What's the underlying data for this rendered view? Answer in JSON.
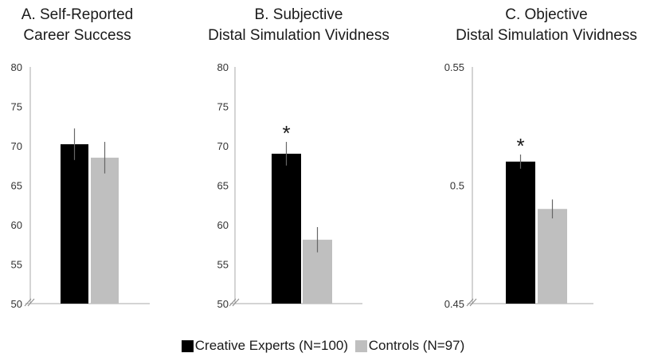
{
  "chart_data": [
    {
      "type": "bar",
      "title": [
        "A. Self-Reported",
        "Career Success"
      ],
      "categories": [
        ""
      ],
      "series": [
        {
          "name": "Creative Experts (N=100)",
          "values": [
            70.2
          ],
          "error": [
            2.0
          ]
        },
        {
          "name": "Controls (N=97)",
          "values": [
            68.5
          ],
          "error": [
            2.0
          ]
        }
      ],
      "ylim": [
        50,
        80
      ],
      "yticks": [
        "80",
        "75",
        "70",
        "65",
        "60",
        "55",
        "50"
      ],
      "significance": ""
    },
    {
      "type": "bar",
      "title": [
        "B. Subjective",
        "Distal Simulation Vividness"
      ],
      "categories": [
        ""
      ],
      "series": [
        {
          "name": "Creative Experts (N=100)",
          "values": [
            69.0
          ],
          "error": [
            1.5
          ]
        },
        {
          "name": "Controls (N=97)",
          "values": [
            58.1
          ],
          "error": [
            1.6
          ]
        }
      ],
      "ylim": [
        50,
        80
      ],
      "yticks": [
        "80",
        "75",
        "70",
        "65",
        "60",
        "55",
        "50"
      ],
      "significance": "*"
    },
    {
      "type": "bar",
      "title": [
        "C. Objective",
        "Distal Simulation Vividness"
      ],
      "categories": [
        ""
      ],
      "series": [
        {
          "name": "Creative Experts (N=100)",
          "values": [
            0.51
          ],
          "error": [
            0.003
          ]
        },
        {
          "name": "Controls (N=97)",
          "values": [
            0.49
          ],
          "error": [
            0.004
          ]
        }
      ],
      "ylim": [
        0.45,
        0.55
      ],
      "yticks": [
        "0.55",
        "0.5",
        "0.45"
      ],
      "significance": "*"
    }
  ],
  "legend": {
    "items": [
      {
        "label": "Creative Experts (N=100)",
        "color": "#000000"
      },
      {
        "label": "Controls (N=97)",
        "color": "#bfbfbf"
      }
    ]
  },
  "colors": {
    "experts": "#000000",
    "controls": "#bfbfbf",
    "axis": "#aaaaaa",
    "error_bar": "#666666"
  }
}
